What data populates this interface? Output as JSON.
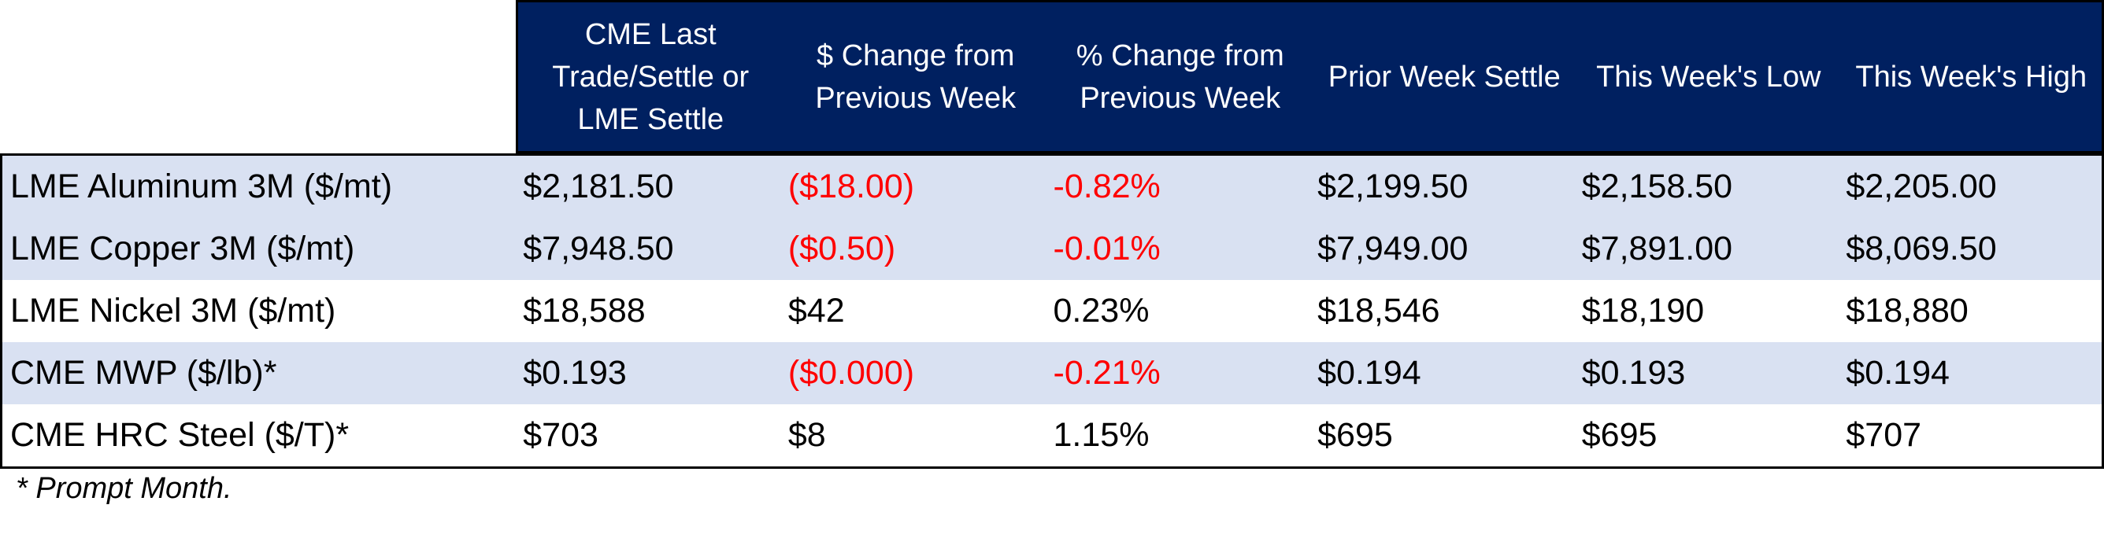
{
  "chart_data": {
    "type": "table",
    "columns": [
      "CME Last\nTrade/Settle or\nLME Settle",
      "$ Change from\nPrevious Week",
      "% Change from\nPrevious Week",
      "Prior Week Settle",
      "This Week's Low",
      "This Week's High"
    ],
    "rows": [
      {
        "label": "LME Aluminum 3M ($/mt)",
        "values": [
          "$2,181.50",
          "($18.00)",
          "-0.82%",
          "$2,199.50",
          "$2,158.50",
          "$2,205.00"
        ],
        "change_negative": true
      },
      {
        "label": "LME Copper 3M ($/mt)",
        "values": [
          "$7,948.50",
          "($0.50)",
          "-0.01%",
          "$7,949.00",
          "$7,891.00",
          "$8,069.50"
        ],
        "change_negative": true
      },
      {
        "label": "LME Nickel 3M ($/mt)",
        "values": [
          "$18,588",
          "$42",
          "0.23%",
          "$18,546",
          "$18,190",
          "$18,880"
        ],
        "change_negative": false
      },
      {
        "label": "CME MWP ($/lb)*",
        "values": [
          "$0.193",
          "($0.000)",
          "-0.21%",
          "$0.194",
          "$0.193",
          "$0.194"
        ],
        "change_negative": true
      },
      {
        "label": "CME HRC Steel ($/T)*",
        "values": [
          "$703",
          "$8",
          "1.15%",
          "$695",
          "$695",
          "$707"
        ],
        "change_negative": false
      }
    ],
    "footnote": "* Prompt Month."
  },
  "colors": {
    "header_bg": "#002060",
    "header_text": "#ffffff",
    "row_shade": "#d9e1f2",
    "negative_text": "#ff0000"
  }
}
